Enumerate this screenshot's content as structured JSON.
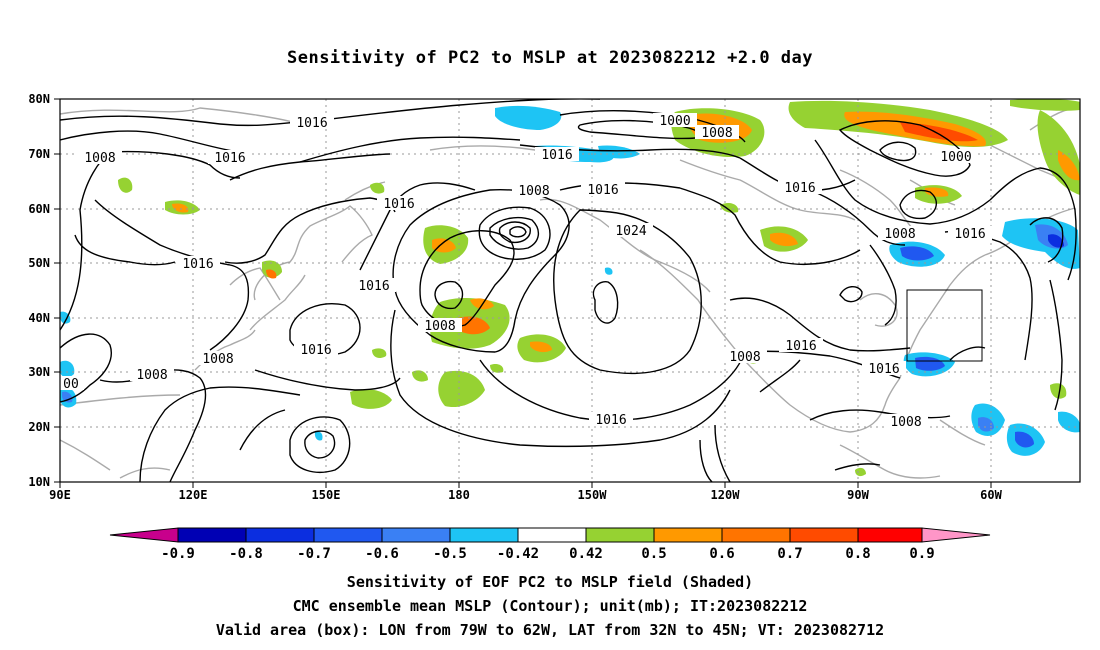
{
  "title": "Sensitivity of PC2 to MSLP at 2023082212 +2.0 day",
  "lat_labels": [
    "80N",
    "70N",
    "60N",
    "50N",
    "40N",
    "30N",
    "20N",
    "10N"
  ],
  "lon_labels": [
    "90E",
    "120E",
    "150E",
    "180",
    "150W",
    "120W",
    "90W",
    "60W"
  ],
  "contour_labels": [
    "1016",
    "1008",
    "1016",
    "1016",
    "1000",
    "1008",
    "1016",
    "1000",
    "1016",
    "1008",
    "1016",
    "1008",
    "1016",
    "1024",
    "1016",
    "1008",
    "1016",
    "1016",
    "1008",
    "1008",
    "1016",
    "1008",
    "1016",
    "1016",
    "1008",
    "00"
  ],
  "colorbar": {
    "labels": [
      "-0.9",
      "-0.8",
      "-0.7",
      "-0.6",
      "-0.5",
      "-0.42",
      "0.42",
      "0.5",
      "0.6",
      "0.7",
      "0.8",
      "0.9"
    ],
    "colors": [
      "#0000b4",
      "#0b2ee0",
      "#2058f0",
      "#3a80f4",
      "#1ec4f4",
      "#ffffff",
      "#96d232",
      "#ff9900",
      "#ff7400",
      "#ff4b00",
      "#ff0000"
    ],
    "low_color": "#c8008c",
    "high_color": "#ff96c8"
  },
  "valid_box": {
    "lon_from": "79W",
    "lon_to": "62W",
    "lat_from": "32N",
    "lat_to": "45N"
  },
  "captions": [
    "Sensitivity of EOF PC2 to MSLP field (Shaded)",
    "CMC ensemble mean MSLP (Contour); unit(mb); IT:2023082212",
    "Valid area (box): LON from 79W to 62W, LAT from 32N to 45N; VT: 2023082712"
  ]
}
